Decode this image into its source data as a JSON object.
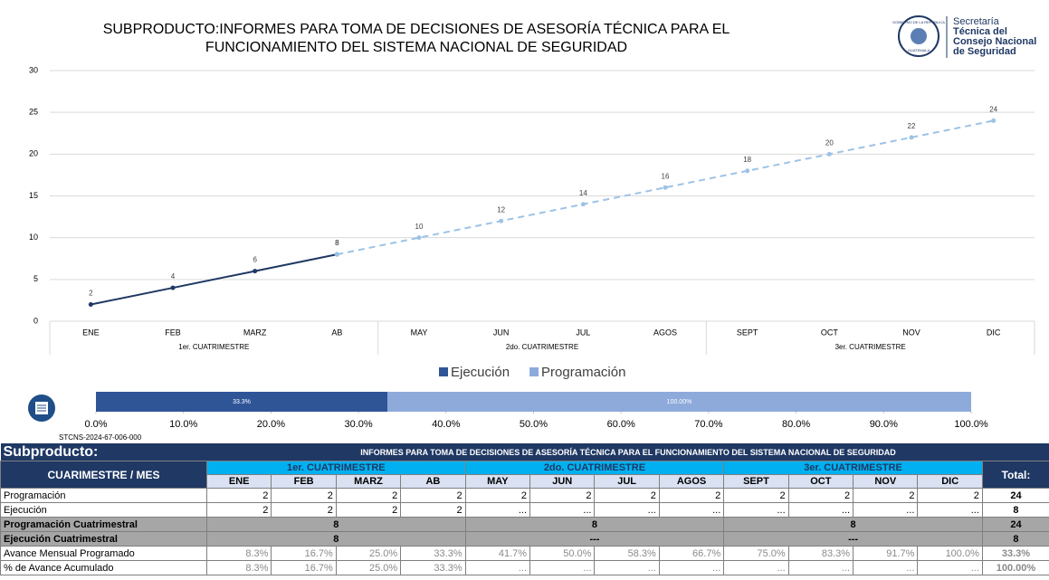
{
  "header": {
    "title_lines": [
      "SUBPRODUCTO:INFORMES PARA TOMA DE DECISIONES DE ASESORÍA TÉCNICA PARA EL",
      "FUNCIONAMIENTO DEL SISTEMA NACIONAL DE SEGURIDAD"
    ],
    "seal": [
      "GOBIERNO DE LA REPÚBLICA",
      "GUATEMALA"
    ],
    "logo_lines": [
      "Secretaría",
      "Técnica del",
      "Consejo Nacional",
      "de Seguridad"
    ]
  },
  "chart_data": [
    {
      "type": "line",
      "categories": [
        "ENE",
        "FEB",
        "MARZ",
        "AB",
        "MAY",
        "JUN",
        "JUL",
        "AGOS",
        "SEPT",
        "OCT",
        "NOV",
        "DIC"
      ],
      "groups": [
        "1er. CUATRIMESTRE",
        "2do. CUATRIMESTRE",
        "3er. CUATRIMESTRE"
      ],
      "series": [
        {
          "name": "Ejecución",
          "color": "#1f3864",
          "dashed": false,
          "values": [
            2,
            4,
            6,
            8,
            null,
            null,
            null,
            null,
            null,
            null,
            null,
            null
          ]
        },
        {
          "name": "Programación",
          "color": "#9dc3e6",
          "dashed": true,
          "values": [
            null,
            null,
            null,
            8,
            10,
            12,
            14,
            16,
            18,
            20,
            22,
            24
          ]
        }
      ],
      "ylim": [
        0,
        30
      ],
      "yticks": [
        0,
        5,
        10,
        15,
        20,
        25,
        30
      ],
      "grid": true
    },
    {
      "type": "bar",
      "horizontal": true,
      "overlap": true,
      "series": [
        {
          "name": "Ejecución",
          "color": "#2f5597",
          "values": [
            33.3
          ],
          "value_labels": [
            "33.3%"
          ]
        },
        {
          "name": "Programación",
          "color": "#8eaadb",
          "values": [
            100
          ],
          "value_labels": [
            "100.00%"
          ]
        }
      ],
      "xlim": [
        0,
        100
      ],
      "xticks": [
        {
          "value": 0,
          "label": "0.0%"
        },
        {
          "value": 10,
          "label": "10.0%"
        },
        {
          "value": 20,
          "label": "20.0%"
        },
        {
          "value": 30,
          "label": "30.0%"
        },
        {
          "value": 40,
          "label": "40.0%"
        },
        {
          "value": 50,
          "label": "50.0%"
        },
        {
          "value": 60,
          "label": "60.0%"
        },
        {
          "value": 70,
          "label": "70.0%"
        },
        {
          "value": 80,
          "label": "80.0%"
        },
        {
          "value": 90,
          "label": "90.0%"
        },
        {
          "value": 100,
          "label": "100.0%"
        }
      ],
      "legend": "top"
    }
  ],
  "code": "STCNS-2024-67-006-000",
  "table": {
    "title": "Subproducto:",
    "subtitle": "INFORMES PARA TOMA DE DECISIONES DE ASESORÍA TÉCNICA PARA EL FUNCIONAMIENTO DEL SISTEMA NACIONAL DE SEGURIDAD",
    "corner": "CUARIMESTRE / MES",
    "total_label": "Total:",
    "groups": [
      "1er. CUATRIMESTRE",
      "2do. CUATRIMESTRE",
      "3er. CUATRIMESTRE"
    ],
    "months": [
      "ENE",
      "FEB",
      "MARZ",
      "AB",
      "MAY",
      "JUN",
      "JUL",
      "AGOS",
      "SEPT",
      "OCT",
      "NOV",
      "DIC"
    ],
    "rows": [
      {
        "label": "Programación",
        "cells": [
          2,
          2,
          2,
          2,
          2,
          2,
          2,
          2,
          2,
          2,
          2,
          2
        ],
        "total": 24
      },
      {
        "label": "Ejecución",
        "cells": [
          2,
          2,
          2,
          2,
          "...",
          "...",
          "...",
          "...",
          "...",
          "...",
          "...",
          "..."
        ],
        "total": 8
      },
      {
        "label": "Programación Cuatrimestral",
        "cells": [
          8,
          8,
          8
        ],
        "total": 24
      },
      {
        "label": "Ejecución Cuatrimestral",
        "cells": [
          8,
          "---",
          "---"
        ],
        "total": 8
      },
      {
        "label": "Avance Mensual Programado",
        "cells": [
          "8.3%",
          "16.7%",
          "25.0%",
          "33.3%",
          "41.7%",
          "50.0%",
          "58.3%",
          "66.7%",
          "75.0%",
          "83.3%",
          "91.7%",
          "100.0%"
        ],
        "total": "33.3%"
      },
      {
        "label": "% de Avance Acumulado",
        "cells": [
          "8.3%",
          "16.7%",
          "25.0%",
          "33.3%",
          "...",
          "...",
          "...",
          "...",
          "...",
          "...",
          "...",
          "..."
        ],
        "total": "100.00%"
      }
    ]
  }
}
